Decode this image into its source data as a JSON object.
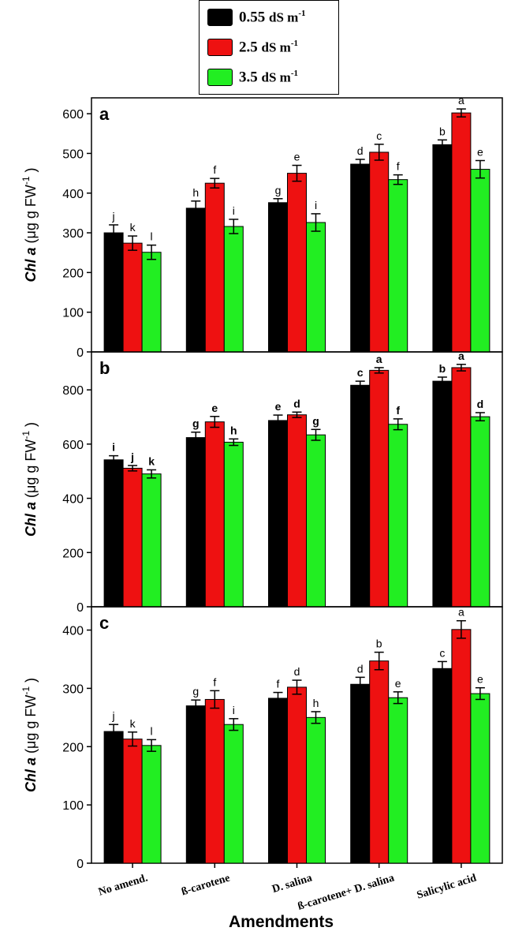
{
  "legend": {
    "items": [
      {
        "value": "0.55",
        "unit": "dS m",
        "sup": "-1",
        "color": "#000000"
      },
      {
        "value": "2.5",
        "unit": "dS m",
        "sup": "-1",
        "color": "#ee1111"
      },
      {
        "value": "3.5",
        "unit": "dS m",
        "sup": "-1",
        "color": "#22ee22"
      }
    ]
  },
  "x_axis_title": "Amendments",
  "categories": [
    "No amend.",
    "ß-carotene",
    "D. salina",
    "ß-carotene+ D. salina",
    "Salicylic acid"
  ],
  "chart_data": [
    {
      "type": "bar",
      "panel_label": "a",
      "ylabel_italic": "Chl a",
      "ylabel_rest": " (μg g FW",
      "ylabel_sup": "-1",
      "ylabel_close": ")",
      "ylim": [
        0,
        640
      ],
      "yticks": [
        0,
        100,
        200,
        300,
        400,
        500,
        600
      ],
      "categories": [
        "No amend.",
        "ß-carotene",
        "D. salina",
        "ß-carotene+ D. salina",
        "Salicylic acid"
      ],
      "series": [
        {
          "name": "0.55 dS m-1",
          "values": [
            300,
            362,
            376,
            473,
            522
          ],
          "errors": [
            20,
            18,
            10,
            12,
            12
          ],
          "letters": [
            "j",
            "h",
            "g",
            "d",
            "b"
          ]
        },
        {
          "name": "2.5 dS m-1",
          "values": [
            274,
            425,
            450,
            503,
            602
          ],
          "errors": [
            18,
            12,
            20,
            20,
            10
          ],
          "letters": [
            "k",
            "f",
            "e",
            "c",
            "a"
          ]
        },
        {
          "name": "3.5 dS m-1",
          "values": [
            251,
            316,
            326,
            434,
            460
          ],
          "errors": [
            18,
            18,
            22,
            12,
            22
          ],
          "letters": [
            "l",
            "i",
            "i",
            "f",
            "e"
          ]
        }
      ]
    },
    {
      "type": "bar",
      "panel_label": "b",
      "ylabel_italic": "Chl a",
      "ylabel_rest": " (μg g FW",
      "ylabel_sup": "-1",
      "ylabel_close": ")",
      "ylim": [
        0,
        940
      ],
      "yticks": [
        0,
        200,
        400,
        600,
        800
      ],
      "categories": [
        "No amend.",
        "ß-carotene",
        "D. salina",
        "ß-carotene+ D. salina",
        "Salicylic acid"
      ],
      "series": [
        {
          "name": "0.55 dS m-1",
          "values": [
            542,
            624,
            687,
            817,
            832
          ],
          "errors": [
            15,
            20,
            20,
            15,
            15
          ],
          "letters": [
            "i",
            "g",
            "e",
            "c",
            "b"
          ]
        },
        {
          "name": "2.5 dS m-1",
          "values": [
            511,
            682,
            708,
            872,
            882
          ],
          "errors": [
            10,
            20,
            10,
            10,
            12
          ],
          "letters": [
            "j",
            "e",
            "d",
            "a",
            "a"
          ]
        },
        {
          "name": "3.5 dS m-1",
          "values": [
            490,
            607,
            634,
            673,
            701
          ],
          "errors": [
            15,
            12,
            20,
            20,
            15
          ],
          "letters": [
            "k",
            "h",
            "g",
            "f",
            "d"
          ]
        }
      ]
    },
    {
      "type": "bar",
      "panel_label": "c",
      "ylabel_italic": "Chl a",
      "ylabel_rest": " (μg g FW",
      "ylabel_sup": "-1",
      "ylabel_close": ")",
      "ylim": [
        0,
        440
      ],
      "yticks": [
        0,
        100,
        200,
        300,
        400
      ],
      "categories": [
        "No amend.",
        "ß-carotene",
        "D. salina",
        "ß-carotene+ D. salina",
        "Salicylic acid"
      ],
      "series": [
        {
          "name": "0.55 dS m-1",
          "values": [
            226,
            270,
            283,
            307,
            334
          ],
          "errors": [
            12,
            10,
            10,
            12,
            12
          ],
          "letters": [
            "j",
            "g",
            "f",
            "d",
            "c"
          ]
        },
        {
          "name": "2.5 dS m-1",
          "values": [
            213,
            281,
            302,
            347,
            401
          ],
          "errors": [
            12,
            15,
            12,
            15,
            15
          ],
          "letters": [
            "k",
            "f",
            "d",
            "b",
            "a"
          ]
        },
        {
          "name": "3.5 dS m-1",
          "values": [
            202,
            238,
            250,
            284,
            291
          ],
          "errors": [
            10,
            10,
            10,
            10,
            10
          ],
          "letters": [
            "l",
            "i",
            "h",
            "e",
            "e"
          ]
        }
      ]
    }
  ]
}
